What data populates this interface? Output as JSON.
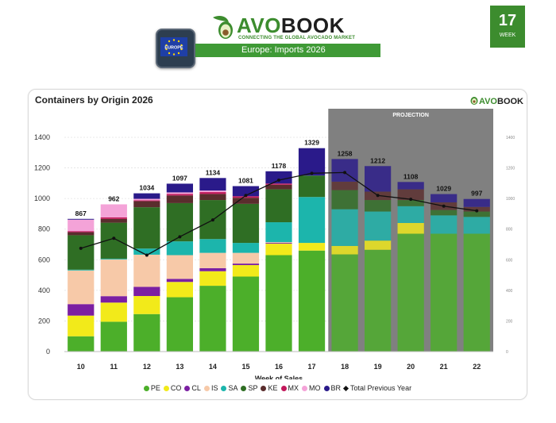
{
  "header": {
    "brand_avo": "AVO",
    "brand_book": "BOOK",
    "brand_tagline": "CONNECTING THE GLOBAL AVOCADO MARKET",
    "region_badge": "EUROPE",
    "banner_title": "Europe: Imports 2026",
    "week_number": "17",
    "week_label": "WEEK"
  },
  "chart_card": {
    "mini_logo_avo": "AVO",
    "mini_logo_book": "BOOK"
  },
  "colors": {
    "PE": "#4caf2a",
    "CO": "#f2ea1a",
    "CL": "#7b1fa2",
    "IS": "#f7c9a8",
    "SA": "#1cb5ac",
    "SP": "#2f6e24",
    "KE": "#5a2d2d",
    "MX": "#c2185b",
    "MO": "#f4a3d8",
    "BR": "#2a1a8a",
    "line": "#111111",
    "projection": "#808080",
    "brand": "#3c8c2e"
  },
  "chart_data": {
    "type": "bar",
    "stacked": true,
    "title": "Containers by Origin 2026",
    "xlabel": "Week of Sales",
    "ylabel": "",
    "ylim": [
      0,
      1400
    ],
    "yticks": [
      0,
      200,
      400,
      600,
      800,
      1000,
      1200,
      1400
    ],
    "secondary_yticks": [
      0,
      200,
      400,
      600,
      800,
      1000,
      1200,
      1400
    ],
    "grid": true,
    "legend_position": "bottom",
    "projection_label": "PROJECTION",
    "projection_start": "18",
    "categories": [
      "10",
      "11",
      "12",
      "13",
      "14",
      "15",
      "16",
      "17",
      "18",
      "19",
      "20",
      "21",
      "22"
    ],
    "totals": [
      867,
      962,
      1034,
      1097,
      1134,
      1081,
      1178,
      1329,
      1258,
      1212,
      1108,
      1029,
      997
    ],
    "series": [
      {
        "name": "PE",
        "values": [
          100,
          195,
          245,
          355,
          430,
          490,
          630,
          660,
          635,
          665,
          770,
          770,
          770
        ]
      },
      {
        "name": "CO",
        "values": [
          135,
          125,
          118,
          100,
          95,
          75,
          75,
          50,
          55,
          60,
          70,
          0,
          0
        ]
      },
      {
        "name": "CL",
        "values": [
          75,
          42,
          60,
          20,
          20,
          10,
          5,
          0,
          0,
          0,
          0,
          0,
          0
        ]
      },
      {
        "name": "IS",
        "values": [
          220,
          240,
          210,
          155,
          100,
          70,
          5,
          0,
          0,
          0,
          0,
          0,
          0
        ]
      },
      {
        "name": "SA",
        "values": [
          5,
          5,
          40,
          90,
          90,
          65,
          130,
          300,
          240,
          190,
          110,
          120,
          110
        ]
      },
      {
        "name": "SP",
        "values": [
          225,
          235,
          270,
          250,
          255,
          255,
          215,
          140,
          125,
          75,
          40,
          35,
          35
        ]
      },
      {
        "name": "KE",
        "values": [
          20,
          25,
          40,
          50,
          40,
          40,
          30,
          0,
          55,
          55,
          70,
          50,
          30
        ]
      },
      {
        "name": "MX",
        "values": [
          7,
          10,
          5,
          10,
          12,
          10,
          8,
          0,
          0,
          0,
          0,
          0,
          0
        ]
      },
      {
        "name": "MO",
        "values": [
          75,
          85,
          10,
          10,
          10,
          0,
          0,
          0,
          0,
          0,
          0,
          0,
          0
        ]
      },
      {
        "name": "BR",
        "values": [
          5,
          0,
          36,
          57,
          82,
          66,
          80,
          179,
          148,
          167,
          48,
          54,
          52
        ]
      },
      {
        "name": "Total Previous Year",
        "type": "line",
        "values": [
          675,
          740,
          630,
          750,
          860,
          1020,
          1120,
          1165,
          1170,
          1020,
          995,
          950,
          920
        ]
      }
    ]
  }
}
